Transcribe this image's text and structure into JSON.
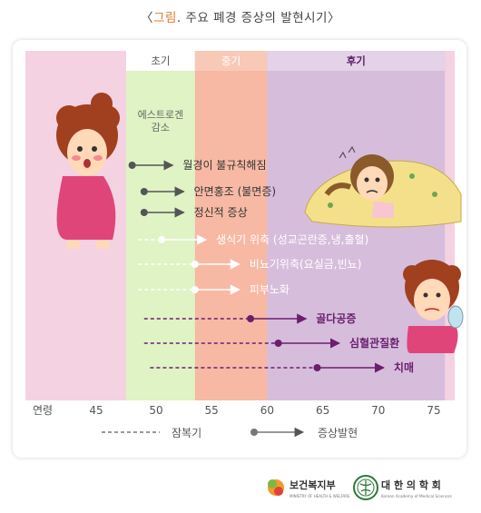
{
  "title": {
    "bracket_open": "〈",
    "prefix": "그림",
    "rest": ". 주요 폐경 증상의 발현시기〉"
  },
  "phases": [
    {
      "label": "초기",
      "color": "#dff3c4",
      "text_color": "#555555",
      "from_age": 47.5,
      "to_age": 53.5
    },
    {
      "label": "중기",
      "color": "#f7b9a4",
      "text_color": "#ffffff",
      "from_age": 53.5,
      "to_age": 60
    },
    {
      "label": "후기",
      "color": "#d7bddc",
      "text_color": "#5a1e68",
      "from_age": 60,
      "to_age": 76
    }
  ],
  "estrogen_label": {
    "line1": "에스트로겐",
    "line2": "감소"
  },
  "axis": {
    "label": "연령",
    "ticks": [
      "45",
      "50",
      "55",
      "60",
      "65",
      "70",
      "75"
    ]
  },
  "symptoms": [
    {
      "label": "월경이 불규칙해짐",
      "start": 48,
      "onset": 48,
      "end": 51.5,
      "color": "#555555",
      "text_color": "#333333"
    },
    {
      "label": "안면홍조 (불면증)",
      "start": 49,
      "onset": 49,
      "end": 52.5,
      "color": "#555555",
      "text_color": "#333333"
    },
    {
      "label": "정신적 증상",
      "start": 49,
      "onset": 49,
      "end": 52.5,
      "color": "#555555",
      "text_color": "#333333"
    },
    {
      "label": "생식기 위축 (성교곤란증,냉,출혈)",
      "start": 48.5,
      "onset": 50.5,
      "end": 54.5,
      "color": "#ffffff",
      "text_color": "#ffffff"
    },
    {
      "label": "비뇨기위축(요실금,빈뇨)",
      "start": 48.5,
      "onset": 53.5,
      "end": 57.5,
      "color": "#ffffff",
      "text_color": "#ffffff"
    },
    {
      "label": "피부노화",
      "start": 48.5,
      "onset": 53.5,
      "end": 57.5,
      "color": "#ffffff",
      "text_color": "#ffffff"
    },
    {
      "label": "골다공증",
      "start": 49,
      "onset": 58.5,
      "end": 63.5,
      "color": "#6a1f6e",
      "text_color": "#6a1f6e"
    },
    {
      "label": "심혈관질환",
      "start": 49,
      "onset": 61,
      "end": 66.5,
      "color": "#6a1f6e",
      "text_color": "#6a1f6e"
    },
    {
      "label": "치매",
      "start": 49.5,
      "onset": 64.5,
      "end": 70.5,
      "color": "#6a1f6e",
      "text_color": "#6a1f6e"
    }
  ],
  "legend": {
    "latent": "잠복기",
    "onset": "증상발현"
  },
  "logos": {
    "ministry": "보건복지부",
    "ministry_sub": "MINISTRY OF HEALTH & WELFARE",
    "academy": "대 한 의 학 회",
    "academy_sub": "Korean Academy of Medical Sciences"
  },
  "colors": {
    "background": "#f4d2e2",
    "accent": "#e07a2a",
    "purple": "#6a1f6e"
  }
}
